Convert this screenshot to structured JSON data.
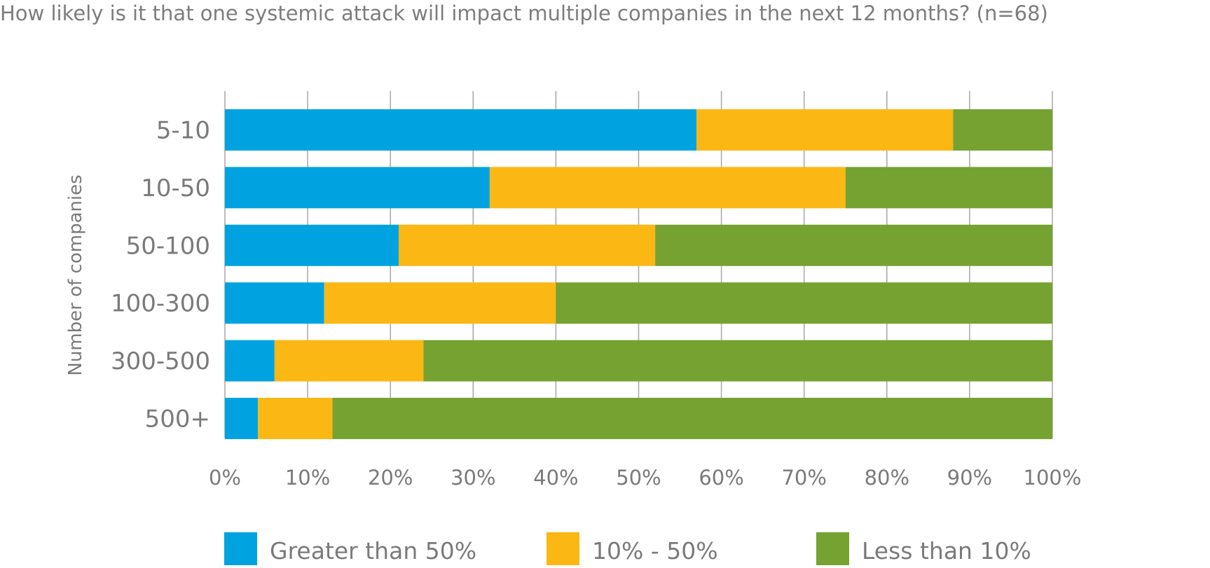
{
  "chart_data": {
    "type": "bar",
    "orientation": "horizontal",
    "stacked": true,
    "percent_stacked": true,
    "title": "How likely is it that one systemic attack will impact multiple companies in the next 12 months? (n=68)",
    "xlabel": "",
    "ylabel": "Number of companies",
    "categories": [
      "5-10",
      "10-50",
      "50-100",
      "100-300",
      "300-500",
      "500+"
    ],
    "series": [
      {
        "name": "Greater than 50%",
        "color": "#00a3e0",
        "values": [
          57,
          32,
          21,
          12,
          6,
          4
        ]
      },
      {
        "name": "10% - 50%",
        "color": "#fbb713",
        "values": [
          31,
          43,
          31,
          28,
          18,
          9
        ]
      },
      {
        "name": "Less than 10%",
        "color": "#76a232",
        "values": [
          12,
          25,
          48,
          60,
          76,
          87
        ]
      }
    ],
    "xlim": [
      0,
      100
    ],
    "xticks": [
      "0%",
      "10%",
      "20%",
      "30%",
      "40%",
      "50%",
      "60%",
      "70%",
      "80%",
      "90%",
      "100%"
    ],
    "grid": true,
    "legend_position": "bottom"
  }
}
